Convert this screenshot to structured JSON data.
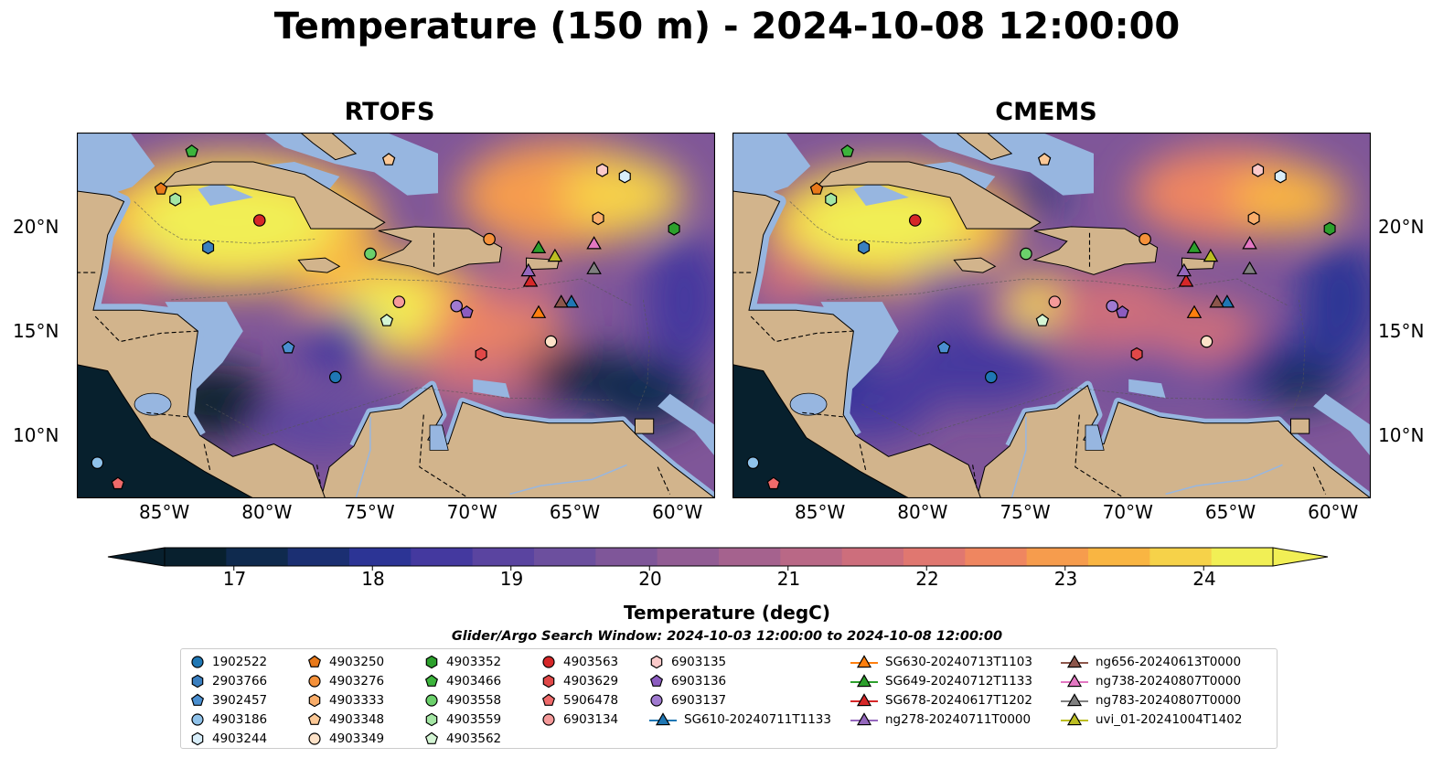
{
  "title": "Temperature (150 m) - 2024-10-08 12:00:00",
  "panels": [
    {
      "name": "RTOFS"
    },
    {
      "name": "CMEMS"
    }
  ],
  "axes": {
    "x_ticks": [
      "85°W",
      "80°W",
      "75°W",
      "70°W",
      "65°W",
      "60°W"
    ],
    "y_ticks": [
      "20°N",
      "15°N",
      "10°N"
    ]
  },
  "colorbar": {
    "label": "Temperature (degC)",
    "ticks": [
      "17",
      "18",
      "19",
      "20",
      "21",
      "22",
      "23",
      "24"
    ],
    "min": 16.5,
    "max": 24.5,
    "colors": [
      "#08202e",
      "#0f2a4e",
      "#1b2f72",
      "#2c3495",
      "#44399f",
      "#5a44a0",
      "#6c4f9e",
      "#7f5699",
      "#925c94",
      "#a5628e",
      "#b96886",
      "#cd6e7c",
      "#e07770",
      "#ef8660",
      "#f69c4d",
      "#f9b542",
      "#f6d249",
      "#f1ef55"
    ]
  },
  "search_window": "Glider/Argo Search Window: 2024-10-03 12:00:00 to 2024-10-08 12:00:00",
  "legend": [
    {
      "label": "1902522",
      "shape": "circle",
      "color": "#1f77b4"
    },
    {
      "label": "2903766",
      "shape": "hexagon",
      "color": "#3a7fc0"
    },
    {
      "label": "3902457",
      "shape": "pentagon",
      "color": "#4a8fd0"
    },
    {
      "label": "4903186",
      "shape": "circle",
      "color": "#8fc2ea"
    },
    {
      "label": "4903244",
      "shape": "hexagon",
      "color": "#d8eefa"
    },
    {
      "label": "4903250",
      "shape": "pentagon",
      "color": "#e8791a"
    },
    {
      "label": "4903276",
      "shape": "circle",
      "color": "#f5913a"
    },
    {
      "label": "4903333",
      "shape": "hexagon",
      "color": "#f9ad6a"
    },
    {
      "label": "4903348",
      "shape": "pentagon",
      "color": "#fbc896"
    },
    {
      "label": "4903349",
      "shape": "circle",
      "color": "#fde2c8"
    },
    {
      "label": "4903352",
      "shape": "hexagon",
      "color": "#2ca02c"
    },
    {
      "label": "4903466",
      "shape": "pentagon",
      "color": "#3cb43c"
    },
    {
      "label": "4903558",
      "shape": "circle",
      "color": "#6bd06b"
    },
    {
      "label": "4903559",
      "shape": "hexagon",
      "color": "#a4e6a4"
    },
    {
      "label": "4903562",
      "shape": "pentagon",
      "color": "#d4f5d4"
    },
    {
      "label": "4903563",
      "shape": "circle",
      "color": "#d62728"
    },
    {
      "label": "4903629",
      "shape": "hexagon",
      "color": "#e04848"
    },
    {
      "label": "5906478",
      "shape": "pentagon",
      "color": "#ef6a6a"
    },
    {
      "label": "6903134",
      "shape": "circle",
      "color": "#f59a9a"
    },
    {
      "label": "6903135",
      "shape": "hexagon",
      "color": "#fbcaca"
    },
    {
      "label": "6903136",
      "shape": "pentagon",
      "color": "#8c5cc0"
    },
    {
      "label": "6903137",
      "shape": "circle",
      "color": "#a07ad0"
    },
    {
      "label": "SG610-20240711T1133",
      "shape": "triangle",
      "color": "#1f77b4"
    },
    {
      "label": "SG630-20240713T1103",
      "shape": "triangle",
      "color": "#ff7f0e"
    },
    {
      "label": "SG649-20240712T1133",
      "shape": "triangle",
      "color": "#2ca02c"
    },
    {
      "label": "SG678-20240617T1202",
      "shape": "triangle",
      "color": "#d62728"
    },
    {
      "label": "ng278-20240711T0000",
      "shape": "triangle",
      "color": "#9467bd"
    },
    {
      "label": "ng656-20240613T0000",
      "shape": "triangle",
      "color": "#8c564b"
    },
    {
      "label": "ng738-20240807T0000",
      "shape": "triangle",
      "color": "#e377c2"
    },
    {
      "label": "ng783-20240807T0000",
      "shape": "triangle",
      "color": "#7f7f7f"
    },
    {
      "label": "uvi_01-20241004T1402",
      "shape": "triangle",
      "color": "#bcbd22"
    }
  ],
  "markers": [
    {
      "id": "1902522",
      "lon": -76.5,
      "lat": 12.8
    },
    {
      "id": "2903766",
      "lon": -82.7,
      "lat": 19.0
    },
    {
      "id": "3902457",
      "lon": -78.8,
      "lat": 14.2
    },
    {
      "id": "4903186",
      "lon": -88.1,
      "lat": 8.7
    },
    {
      "id": "4903244",
      "lon": -62.4,
      "lat": 22.4
    },
    {
      "id": "4903250",
      "lon": -85.0,
      "lat": 21.8
    },
    {
      "id": "4903276",
      "lon": -69.0,
      "lat": 19.4
    },
    {
      "id": "4903333",
      "lon": -63.7,
      "lat": 20.4
    },
    {
      "id": "4903348",
      "lon": -73.9,
      "lat": 23.2
    },
    {
      "id": "4903349",
      "lon": -66.0,
      "lat": 14.5
    },
    {
      "id": "4903352",
      "lon": -60.0,
      "lat": 19.9
    },
    {
      "id": "4903466",
      "lon": -83.5,
      "lat": 23.6
    },
    {
      "id": "4903558",
      "lon": -74.8,
      "lat": 18.7
    },
    {
      "id": "4903559",
      "lon": -84.3,
      "lat": 21.3
    },
    {
      "id": "4903562",
      "lon": -74.0,
      "lat": 15.5
    },
    {
      "id": "4903563",
      "lon": -80.2,
      "lat": 20.3
    },
    {
      "id": "4903629",
      "lon": -69.4,
      "lat": 13.9
    },
    {
      "id": "5906478",
      "lon": -87.1,
      "lat": 7.7
    },
    {
      "id": "6903134",
      "lon": -73.4,
      "lat": 16.4
    },
    {
      "id": "6903135",
      "lon": -63.5,
      "lat": 22.7
    },
    {
      "id": "6903136",
      "lon": -70.1,
      "lat": 15.9
    },
    {
      "id": "6903137",
      "lon": -70.6,
      "lat": 16.2
    },
    {
      "id": "SG610-20240711T1133",
      "lon": -65.0,
      "lat": 16.4
    },
    {
      "id": "SG630-20240713T1103",
      "lon": -66.6,
      "lat": 15.9
    },
    {
      "id": "SG649-20240712T1133",
      "lon": -66.6,
      "lat": 19.0
    },
    {
      "id": "SG678-20240617T1202",
      "lon": -67.0,
      "lat": 17.4
    },
    {
      "id": "ng278-20240711T0000",
      "lon": -67.1,
      "lat": 17.9
    },
    {
      "id": "ng656-20240613T0000",
      "lon": -65.5,
      "lat": 16.4
    },
    {
      "id": "ng738-20240807T0000",
      "lon": -63.9,
      "lat": 19.2
    },
    {
      "id": "ng783-20240807T0000",
      "lon": -63.9,
      "lat": 18.0
    },
    {
      "id": "uvi_01-20241004T1402",
      "lon": -65.8,
      "lat": 18.6
    }
  ]
}
